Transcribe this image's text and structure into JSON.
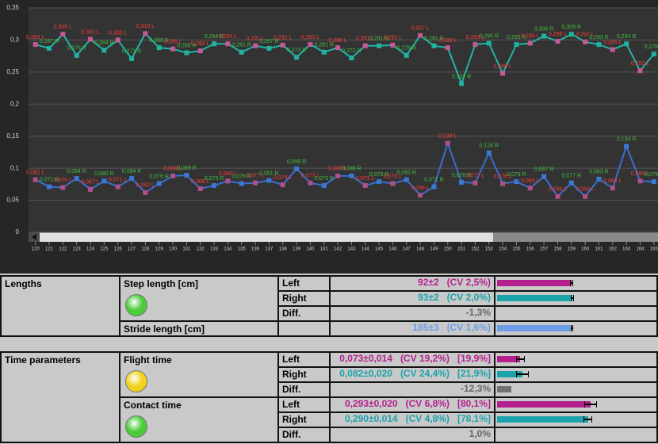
{
  "chart_data": {
    "type": "line",
    "x": [
      120,
      121,
      122,
      123,
      124,
      125,
      126,
      127,
      128,
      129,
      130,
      131,
      132,
      133,
      134,
      135,
      136,
      137,
      138,
      139,
      140,
      141,
      142,
      143,
      144,
      145,
      146,
      147,
      148,
      149,
      150,
      151,
      152,
      153,
      154,
      155,
      156,
      157,
      158,
      159,
      160,
      161,
      162,
      163,
      164,
      165
    ],
    "xlim": [
      119.5,
      165.3
    ],
    "xticks": [
      120,
      121,
      122,
      123,
      124,
      125,
      126,
      127,
      128,
      129,
      130,
      131,
      132,
      133,
      134,
      135,
      136,
      137,
      138,
      139,
      140,
      141,
      142,
      143,
      144,
      145,
      146,
      147,
      148,
      149,
      150,
      151,
      152,
      153,
      154,
      155,
      156,
      157,
      158,
      159,
      160,
      161,
      162,
      163,
      164,
      165
    ],
    "ylim": [
      0,
      0.35
    ],
    "yticks": [
      0,
      {
        "value": 0.05,
        "label": "0,05"
      },
      {
        "value": 0.1,
        "label": "0,1"
      },
      {
        "value": 0.15,
        "label": "0,15"
      },
      {
        "value": 0.2,
        "label": "0,2"
      },
      {
        "value": 0.25,
        "label": "0,25"
      },
      {
        "value": 0.3,
        "label": "0,3"
      },
      {
        "value": 0.35,
        "label": "0,35"
      }
    ],
    "grid": true,
    "label_colors": [
      "#ff3b3b",
      "#3fbf3f"
    ],
    "series": [
      {
        "color": "#20b4a4",
        "marker_colors": [
          "#c45a96",
          "#22b2a2"
        ],
        "values": [
          0.293,
          0.287,
          0.309,
          0.276,
          0.301,
          0.284,
          0.3,
          0.271,
          0.31,
          0.288,
          0.286,
          0.28,
          0.283,
          0.294,
          0.294,
          0.281,
          0.291,
          0.287,
          0.292,
          0.273,
          0.293,
          0.281,
          0.288,
          0.272,
          0.291,
          0.291,
          0.292,
          0.276,
          0.307,
          0.291,
          0.288,
          0.232,
          0.293,
          0.295,
          0.248,
          0.293,
          0.295,
          0.306,
          0.298,
          0.309,
          0.297,
          0.293,
          0.285,
          0.294,
          0.252,
          0.278
        ],
        "value_labels": [
          "0,293 L",
          "0,287 R",
          "0,309 L",
          "0,276 R",
          "0,301 L",
          "0,284 R",
          "0,300 L",
          "0,271 R",
          "0,310 L",
          "0,288 R",
          "0,286 L",
          "0,280 R",
          "0,283 L",
          "0,294 R",
          "0,294 L",
          "0,281 R",
          "0,291 L",
          "0,287 R",
          "0,292 L",
          "0,273 R",
          "0,293 L",
          "0,281 R",
          "0,288 L",
          "0,272 R",
          "0,291 L",
          "0,291 R",
          "0,292 L",
          "0,276 R",
          "0,307 L",
          "0,291 R",
          "0,288 L",
          "0,232 R",
          "0,293 L",
          "0,295 R",
          "0,248 L",
          "0,293 R",
          "0,295 L",
          "0,306 R",
          "0,298 L",
          "0,309 R",
          "0,297 L",
          "0,293 R",
          "0,285 L",
          "0,294 R",
          "0,252 L",
          "0,278 R"
        ]
      },
      {
        "color": "#3a6ed0",
        "marker_colors": [
          "#b0508a",
          "#3a78d4"
        ],
        "values": [
          0.082,
          0.071,
          0.07,
          0.084,
          0.067,
          0.08,
          0.071,
          0.084,
          0.062,
          0.076,
          0.088,
          0.089,
          0.068,
          0.073,
          0.08,
          0.076,
          0.077,
          0.081,
          0.074,
          0.099,
          0.077,
          0.073,
          0.088,
          0.088,
          0.073,
          0.079,
          0.076,
          0.082,
          0.058,
          0.071,
          0.139,
          0.078,
          0.077,
          0.124,
          0.076,
          0.079,
          0.069,
          0.087,
          0.056,
          0.077,
          0.056,
          0.083,
          0.069,
          0.134,
          0.08,
          0.079
        ],
        "value_labels": [
          "0,082 L",
          "0,071 R",
          "0,070 L",
          "0,084 R",
          "0,067 L",
          "0,080 R",
          "0,071 L",
          "0,084 R",
          "0,062 L",
          "0,076 R",
          "0,088 L",
          "0,089 R",
          "0,068 L",
          "0,073 R",
          "0,080 L",
          "0,076 R",
          "0,077 L",
          "0,081 R",
          "0,074 L",
          "0,099 R",
          "0,077 L",
          "0,073 R",
          "0,088 L",
          "0,088 R",
          "0,073 L",
          "0,079 R",
          "0,076 L",
          "0,082 R",
          "0,058 L",
          "0,071 R",
          "0,139 L",
          "0,078 R",
          "0,077 L",
          "0,124 R",
          "0,076 L",
          "0,079 R",
          "0,069 L",
          "0,087 R",
          "0,056 L",
          "0,077 R",
          "0,056 L",
          "0,083 R",
          "0,069 L",
          "0,134 R",
          "0,080 L",
          "0,079 R"
        ]
      }
    ]
  },
  "sections": [
    {
      "title": "Lengths",
      "groups": [
        {
          "label": "Step length [cm]",
          "light": "#4ccc3a",
          "rows": [
            {
              "side": "Left",
              "color": "#b4218f",
              "texts": [
                "92±2",
                "(CV 2,5%)"
              ],
              "bar": {
                "value": 92,
                "error": 2,
                "lim": [
                  0,
                  196
                ],
                "color": "#b4218f"
              }
            },
            {
              "side": "Right",
              "color": "#1aa3aa",
              "texts": [
                "93±2",
                "(CV 2,0%)"
              ],
              "bar": {
                "value": 93,
                "error": 2,
                "lim": [
                  0,
                  196
                ],
                "color": "#1aa3aa"
              }
            },
            {
              "side": "Diff.",
              "color": "#666666",
              "texts": [
                "-1,3%"
              ]
            }
          ]
        },
        {
          "label": "Stride length [cm]",
          "rows": [
            {
              "color": "#6d9de6",
              "texts": [
                "185±3",
                "(CV 1,6%)"
              ],
              "bar": {
                "value": 185,
                "error": 3,
                "lim": [
                  0,
                  392
                ],
                "color": "#6d9de6"
              }
            }
          ]
        }
      ]
    },
    {
      "title": "Time parameters",
      "groups": [
        {
          "label": "Flight time",
          "light": "#f2d21a",
          "rows": [
            {
              "side": "Left",
              "color": "#b4218f",
              "texts": [
                "0,073±0,014",
                "(CV 19,2%)",
                "[19,9%]"
              ],
              "bar": {
                "value": 19.9,
                "error": 3.8,
                "lim": [
                  0,
                  136
                ],
                "color": "#b4218f"
              }
            },
            {
              "side": "Right",
              "color": "#1aa3aa",
              "texts": [
                "0,082±0,020",
                "(CV 24,4%)",
                "[21,9%]"
              ],
              "bar": {
                "value": 21.9,
                "error": 5.3,
                "lim": [
                  0,
                  136
                ],
                "color": "#1aa3aa"
              }
            },
            {
              "side": "Diff.",
              "color": "#666666",
              "texts": [
                "-12,3%"
              ],
              "bar": {
                "value": -12.3,
                "lim": [
                  0,
                  136
                ],
                "color": "#707070"
              }
            }
          ]
        },
        {
          "label": "Contact time",
          "light": "#4ccc3a",
          "rows": [
            {
              "side": "Left",
              "color": "#b4218f",
              "texts": [
                "0,293±0,020",
                "(CV 6,8%)",
                "[80,1%]"
              ],
              "bar": {
                "value": 80.1,
                "error": 5.5,
                "lim": [
                  0,
                  136
                ],
                "color": "#b4218f"
              }
            },
            {
              "side": "Right",
              "color": "#1aa3aa",
              "texts": [
                "0,290±0,014",
                "(CV 4,8%)",
                "[78,1%]"
              ],
              "bar": {
                "value": 78.1,
                "error": 3.8,
                "lim": [
                  0,
                  136
                ],
                "color": "#1aa3aa"
              }
            },
            {
              "side": "Diff.",
              "color": "#666666",
              "texts": [
                "1,0%"
              ]
            }
          ]
        }
      ]
    }
  ]
}
